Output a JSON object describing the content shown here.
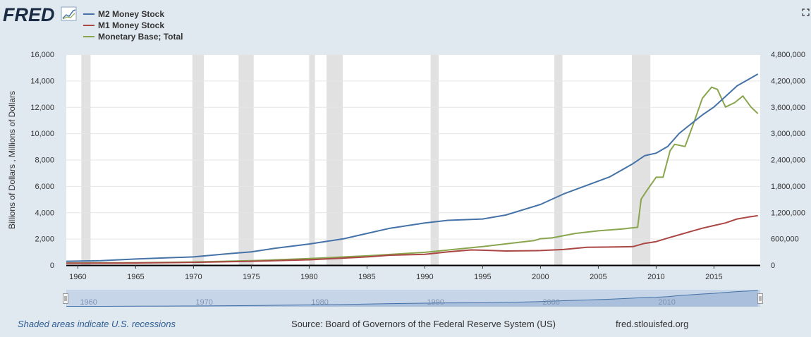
{
  "logo": {
    "text": "FRED"
  },
  "footer": {
    "note": "Shaded areas indicate U.S. recessions",
    "source": "Source: Board of Governors of the Federal Reserve System (US)",
    "site": "fred.stlouisfed.org"
  },
  "colors": {
    "background": "#e1e9f0",
    "plot_background": "#ffffff",
    "recession": "#e1e1e1",
    "m2": "#4572a7",
    "m1": "#aa4643",
    "base": "#89a54e",
    "navigator_fill": "#c7d5e8",
    "navigator_line": "#4572a7"
  },
  "chart_data": {
    "type": "line",
    "xlabel": "",
    "ylabel": "Billions of Dollars , Millions of Dollars",
    "xlim": [
      1959,
      2019
    ],
    "ylim_left": [
      0,
      16000
    ],
    "ylim_right": [
      0,
      4800000
    ],
    "x_ticks": [
      1960,
      1965,
      1970,
      1975,
      1980,
      1985,
      1990,
      1995,
      2000,
      2005,
      2010,
      2015
    ],
    "y_ticks_left": [
      "0",
      "2,000",
      "4,000",
      "6,000",
      "8,000",
      "10,000",
      "12,000",
      "14,000",
      "16,000"
    ],
    "y_ticks_right": [
      "0",
      "600,000",
      "1,200,000",
      "1,800,000",
      "2,400,000",
      "3,000,000",
      "3,600,000",
      "4,200,000",
      "4,800,000"
    ],
    "navigator_labels": [
      "1960",
      "1970",
      "1980",
      "1990",
      "2000",
      "2010"
    ],
    "recessions": [
      [
        1960.3,
        1961.1
      ],
      [
        1969.9,
        1970.9
      ],
      [
        1973.9,
        1975.2
      ],
      [
        1980.0,
        1980.5
      ],
      [
        1981.5,
        1982.9
      ],
      [
        1990.5,
        1991.2
      ],
      [
        2001.2,
        2001.9
      ],
      [
        2007.9,
        2009.5
      ]
    ],
    "series": [
      {
        "name": "M2 Money Stock",
        "axis": "left",
        "points": [
          [
            1959,
            290
          ],
          [
            1962,
            330
          ],
          [
            1965,
            460
          ],
          [
            1968,
            560
          ],
          [
            1970,
            620
          ],
          [
            1973,
            860
          ],
          [
            1975,
            1000
          ],
          [
            1977,
            1270
          ],
          [
            1980,
            1600
          ],
          [
            1983,
            2000
          ],
          [
            1985,
            2400
          ],
          [
            1987,
            2800
          ],
          [
            1990,
            3200
          ],
          [
            1992,
            3400
          ],
          [
            1995,
            3500
          ],
          [
            1997,
            3800
          ],
          [
            2000,
            4600
          ],
          [
            2002,
            5400
          ],
          [
            2004,
            6050
          ],
          [
            2006,
            6700
          ],
          [
            2008,
            7700
          ],
          [
            2009,
            8300
          ],
          [
            2010,
            8500
          ],
          [
            2011,
            9000
          ],
          [
            2012,
            10000
          ],
          [
            2013,
            10700
          ],
          [
            2014,
            11400
          ],
          [
            2015,
            12000
          ],
          [
            2016,
            12800
          ],
          [
            2017,
            13600
          ],
          [
            2018,
            14100
          ],
          [
            2018.8,
            14500
          ]
        ]
      },
      {
        "name": "M1 Money Stock",
        "axis": "left",
        "points": [
          [
            1959,
            140
          ],
          [
            1965,
            160
          ],
          [
            1970,
            210
          ],
          [
            1975,
            290
          ],
          [
            1980,
            400
          ],
          [
            1985,
            620
          ],
          [
            1987,
            750
          ],
          [
            1990,
            820
          ],
          [
            1992,
            1000
          ],
          [
            1994,
            1150
          ],
          [
            1995,
            1130
          ],
          [
            1997,
            1070
          ],
          [
            2000,
            1100
          ],
          [
            2002,
            1180
          ],
          [
            2004,
            1350
          ],
          [
            2006,
            1370
          ],
          [
            2008,
            1400
          ],
          [
            2009,
            1650
          ],
          [
            2010,
            1780
          ],
          [
            2011,
            2050
          ],
          [
            2012,
            2300
          ],
          [
            2013,
            2550
          ],
          [
            2014,
            2800
          ],
          [
            2015,
            3000
          ],
          [
            2016,
            3200
          ],
          [
            2017,
            3500
          ],
          [
            2018,
            3650
          ],
          [
            2018.8,
            3750
          ]
        ]
      },
      {
        "name": "Monetary Base; Total",
        "axis": "right",
        "points": [
          [
            1959,
            48000
          ],
          [
            1965,
            55000
          ],
          [
            1970,
            70000
          ],
          [
            1975,
            100000
          ],
          [
            1980,
            150000
          ],
          [
            1985,
            210000
          ],
          [
            1990,
            290000
          ],
          [
            1995,
            420000
          ],
          [
            1999.5,
            560000
          ],
          [
            2000,
            600000
          ],
          [
            2001,
            620000
          ],
          [
            2003,
            720000
          ],
          [
            2005,
            780000
          ],
          [
            2007,
            820000
          ],
          [
            2008.4,
            860000
          ],
          [
            2008.7,
            1500000
          ],
          [
            2009.2,
            1700000
          ],
          [
            2010,
            2000000
          ],
          [
            2010.6,
            2000000
          ],
          [
            2011.2,
            2600000
          ],
          [
            2011.6,
            2750000
          ],
          [
            2012.5,
            2700000
          ],
          [
            2013.2,
            3200000
          ],
          [
            2014,
            3800000
          ],
          [
            2014.8,
            4050000
          ],
          [
            2015.3,
            4000000
          ],
          [
            2016,
            3600000
          ],
          [
            2016.8,
            3700000
          ],
          [
            2017.5,
            3850000
          ],
          [
            2018.2,
            3600000
          ],
          [
            2018.8,
            3450000
          ]
        ]
      }
    ]
  }
}
